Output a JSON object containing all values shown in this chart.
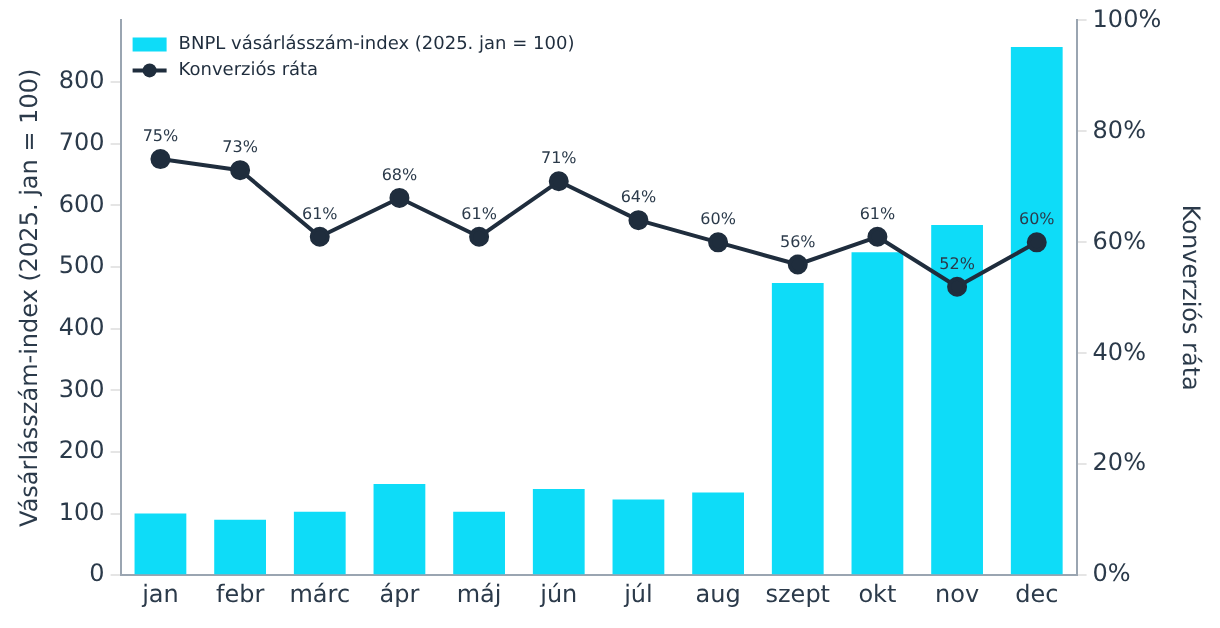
{
  "chart_data": {
    "type": "bar",
    "ylabel": "Vásárlásszám-index (2025. jan = 100)",
    "y2label": "Konverziós ráta",
    "categories": [
      "jan",
      "febr",
      "márc",
      "ápr",
      "máj",
      "jún",
      "júl",
      "aug",
      "szept",
      "okt",
      "nov",
      "dec"
    ],
    "series": [
      {
        "name": "BNPL vásárlásszám-index (2025. jan = 100)",
        "color": "#0edcf8",
        "values": [
          100,
          90,
          103,
          148,
          103,
          140,
          123,
          134,
          474,
          524,
          568,
          857
        ]
      },
      {
        "name": "Konverziós ráta",
        "type": "line",
        "axis": "y2",
        "color": "#1f2d3d",
        "marker": "circle",
        "values": [
          75,
          73,
          61,
          68,
          61,
          71,
          64,
          60,
          56,
          61,
          52,
          60
        ],
        "value_labels": [
          "75%",
          "73%",
          "61%",
          "68%",
          "61%",
          "71%",
          "64%",
          "60%",
          "56%",
          "61%",
          "52%",
          "60%"
        ]
      }
    ],
    "ylim": [
      0,
      900
    ],
    "yticks": [
      0,
      100,
      200,
      300,
      400,
      500,
      600,
      700,
      800
    ],
    "y2lim": [
      0,
      100
    ],
    "y2ticks": [
      {
        "value": 0,
        "label": "0%"
      },
      {
        "value": 20,
        "label": "20%"
      },
      {
        "value": 40,
        "label": "40%"
      },
      {
        "value": 60,
        "label": "60%"
      },
      {
        "value": 80,
        "label": "80%"
      },
      {
        "value": 100,
        "label": "100%"
      }
    ],
    "grid": false,
    "legend": "top left"
  }
}
